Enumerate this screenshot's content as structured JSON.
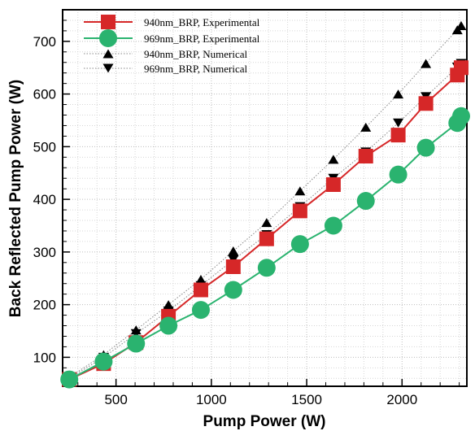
{
  "chart_data": {
    "type": "line",
    "xlabel": "Pump Power (W)",
    "ylabel": "Back Reflected Pump Power (W)",
    "xlim": [
      220,
      2340
    ],
    "ylim": [
      45,
      760
    ],
    "xticks": [
      500,
      1000,
      1500,
      2000
    ],
    "yticks": [
      100,
      200,
      300,
      400,
      500,
      600,
      700
    ],
    "grid": true,
    "legend_position": "top-left",
    "colors": {
      "exp_940": "#d62728",
      "exp_969": "#2ab36f",
      "numerical": "#000000",
      "numerical_line": "#888888"
    },
    "series": [
      {
        "name": "940nm_BRP, Experimental",
        "marker": "square",
        "color": "#d62728",
        "line": true,
        "x": [
          255,
          435,
          605,
          775,
          945,
          1115,
          1290,
          1465,
          1640,
          1810,
          1980,
          2125,
          2290,
          2310
        ],
        "y": [
          58,
          88,
          128,
          178,
          228,
          272,
          325,
          378,
          428,
          482,
          522,
          582,
          636,
          650
        ]
      },
      {
        "name": "969nm_BRP, Experimental",
        "marker": "circle",
        "color": "#2ab36f",
        "line": true,
        "x": [
          255,
          435,
          605,
          775,
          945,
          1115,
          1290,
          1465,
          1640,
          1810,
          1980,
          2125,
          2290,
          2310
        ],
        "y": [
          58,
          92,
          126,
          160,
          190,
          228,
          270,
          315,
          350,
          397,
          447,
          498,
          545,
          558
        ]
      },
      {
        "name": "940nm_BRP, Numerical",
        "marker": "triangle-up",
        "color": "#000000",
        "line": "dotted",
        "x": [
          255,
          435,
          605,
          775,
          945,
          1115,
          1290,
          1465,
          1640,
          1810,
          1980,
          2125,
          2290,
          2310
        ],
        "y": [
          62,
          105,
          152,
          200,
          248,
          302,
          356,
          416,
          476,
          537,
          600,
          658,
          722,
          730
        ]
      },
      {
        "name": "969nm_BRP, Numerical",
        "marker": "triangle-down",
        "color": "#000000",
        "line": "dotted",
        "x": [
          255,
          435,
          605,
          775,
          945,
          1115,
          1290,
          1465,
          1640,
          1810,
          1980,
          2125,
          2290,
          2310
        ],
        "y": [
          60,
          100,
          145,
          188,
          236,
          285,
          333,
          386,
          440,
          490,
          545,
          595,
          651,
          658
        ]
      }
    ]
  }
}
